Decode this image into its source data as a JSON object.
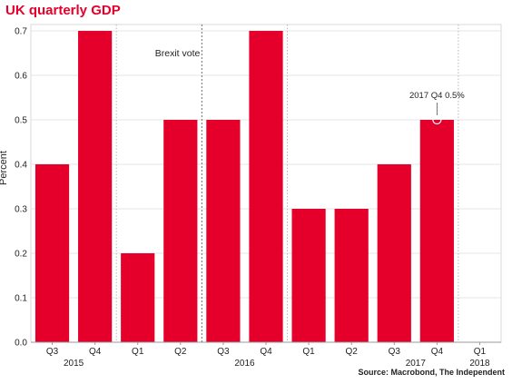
{
  "title": "UK quarterly GDP",
  "ylabel": "Percent",
  "source": "Source: Macrobond, The Independent",
  "colors": {
    "bar": "#e4002b",
    "grid": "#e6e6e6",
    "axis": "#9a9a9a",
    "title": "#e4002b"
  },
  "chart_data": {
    "type": "bar",
    "title": "UK quarterly GDP",
    "ylabel": "Percent",
    "xlabel": "",
    "categories": [
      "Q3",
      "Q4",
      "Q1",
      "Q2",
      "Q3",
      "Q4",
      "Q1",
      "Q2",
      "Q3",
      "Q4",
      "Q1"
    ],
    "years": [
      {
        "label": "2015",
        "between": [
          0,
          1
        ]
      },
      {
        "label": "2016",
        "between": [
          4,
          5
        ]
      },
      {
        "label": "2017",
        "between": [
          8,
          9
        ]
      },
      {
        "label": "2018",
        "between": [
          10,
          10
        ]
      }
    ],
    "values": [
      0.4,
      0.7,
      0.2,
      0.5,
      0.5,
      0.7,
      0.3,
      0.3,
      0.4,
      0.5,
      null
    ],
    "ylim": [
      0,
      0.7
    ],
    "yticks": [
      "0.0",
      "0.1",
      "0.2",
      "0.3",
      "0.4",
      "0.5",
      "0.6",
      "0.7"
    ],
    "grid": true,
    "year_separators_after": [
      1,
      5,
      9
    ],
    "annotations": [
      {
        "text": "Brexit vote",
        "after_index": 3
      },
      {
        "text": "2017 Q4 0.5%",
        "index": 9,
        "value": 0.5
      }
    ]
  }
}
